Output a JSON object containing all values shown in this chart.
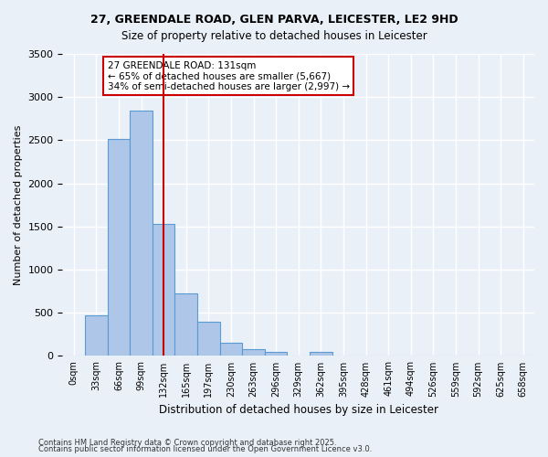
{
  "title": "27, GREENDALE ROAD, GLEN PARVA, LEICESTER, LE2 9HD",
  "subtitle": "Size of property relative to detached houses in Leicester",
  "xlabel": "Distribution of detached houses by size in Leicester",
  "ylabel": "Number of detached properties",
  "bar_values": [
    0,
    470,
    2520,
    2840,
    1530,
    720,
    400,
    155,
    80,
    45,
    5,
    45,
    0,
    0,
    0,
    0,
    0,
    0,
    0,
    0,
    0
  ],
  "bin_labels": [
    "0sqm",
    "33sqm",
    "66sqm",
    "99sqm",
    "132sqm",
    "165sqm",
    "197sqm",
    "230sqm",
    "263sqm",
    "296sqm",
    "329sqm",
    "362sqm",
    "395sqm",
    "428sqm",
    "461sqm",
    "494sqm",
    "526sqm",
    "559sqm",
    "592sqm",
    "625sqm",
    "658sqm"
  ],
  "bar_color": "#aec6e8",
  "bar_edge_color": "#5b9bd5",
  "background_color": "#eaf0f8",
  "grid_color": "#ffffff",
  "property_line_bin": 4,
  "annotation_title": "27 GREENDALE ROAD: 131sqm",
  "annotation_line1": "← 65% of detached houses are smaller (5,667)",
  "annotation_line2": "34% of semi-detached houses are larger (2,997) →",
  "red_line_color": "#cc0000",
  "annotation_box_color": "#cc0000",
  "ylim": [
    0,
    3500
  ],
  "yticks": [
    0,
    500,
    1000,
    1500,
    2000,
    2500,
    3000,
    3500
  ],
  "footnote1": "Contains HM Land Registry data © Crown copyright and database right 2025.",
  "footnote2": "Contains public sector information licensed under the Open Government Licence v3.0."
}
